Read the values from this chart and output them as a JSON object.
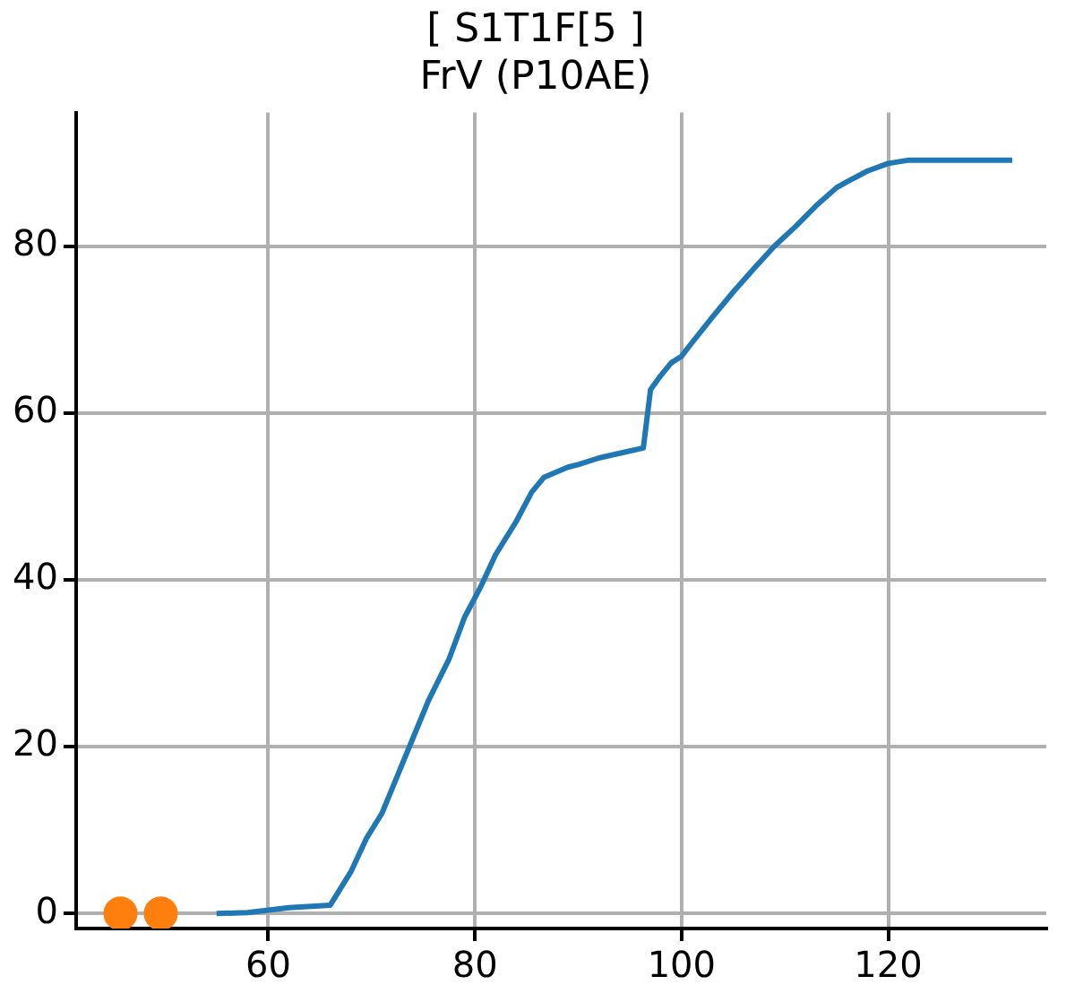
{
  "chart_data": {
    "type": "line",
    "title": "[ S1T1F[5 ]",
    "subtitle": "FrV (P10AE)",
    "xlim": [
      41.4,
      135.3
    ],
    "xticks": [
      60,
      80,
      100,
      120
    ],
    "ylim": [
      -1.8,
      96
    ],
    "yticks": [
      0,
      20,
      40,
      60,
      80
    ],
    "grid": true,
    "legend": false,
    "series": [
      {
        "color": "#1f77b4",
        "marker": "none",
        "x": [
          55,
          58,
          60,
          62,
          66,
          68,
          69.5,
          71,
          73,
          74,
          75.5,
          77.5,
          79,
          80.5,
          82,
          84,
          85.5,
          86.7,
          89,
          90,
          92,
          94.5,
          96.3,
          97,
          98,
          99,
          100,
          101,
          103,
          105,
          107,
          109,
          111,
          113,
          115,
          116,
          118,
          120,
          122,
          132
        ],
        "values": [
          0,
          0.1,
          0.4,
          0.7,
          1.0,
          5,
          9,
          12,
          18,
          21,
          25.5,
          30.5,
          35.5,
          39,
          43,
          47,
          50.5,
          52.3,
          53.5,
          53.8,
          54.6,
          55.3,
          55.8,
          62.8,
          64.5,
          66,
          66.8,
          68.4,
          71.5,
          74.5,
          77.3,
          80,
          82.3,
          84.8,
          87,
          87.7,
          89,
          89.9,
          90.3,
          90.3
        ]
      },
      {
        "type": "scatter",
        "color": "#ff7f0e",
        "marker": "circle",
        "x": [
          45.7,
          49.6
        ],
        "values": [
          0,
          0
        ]
      }
    ]
  }
}
